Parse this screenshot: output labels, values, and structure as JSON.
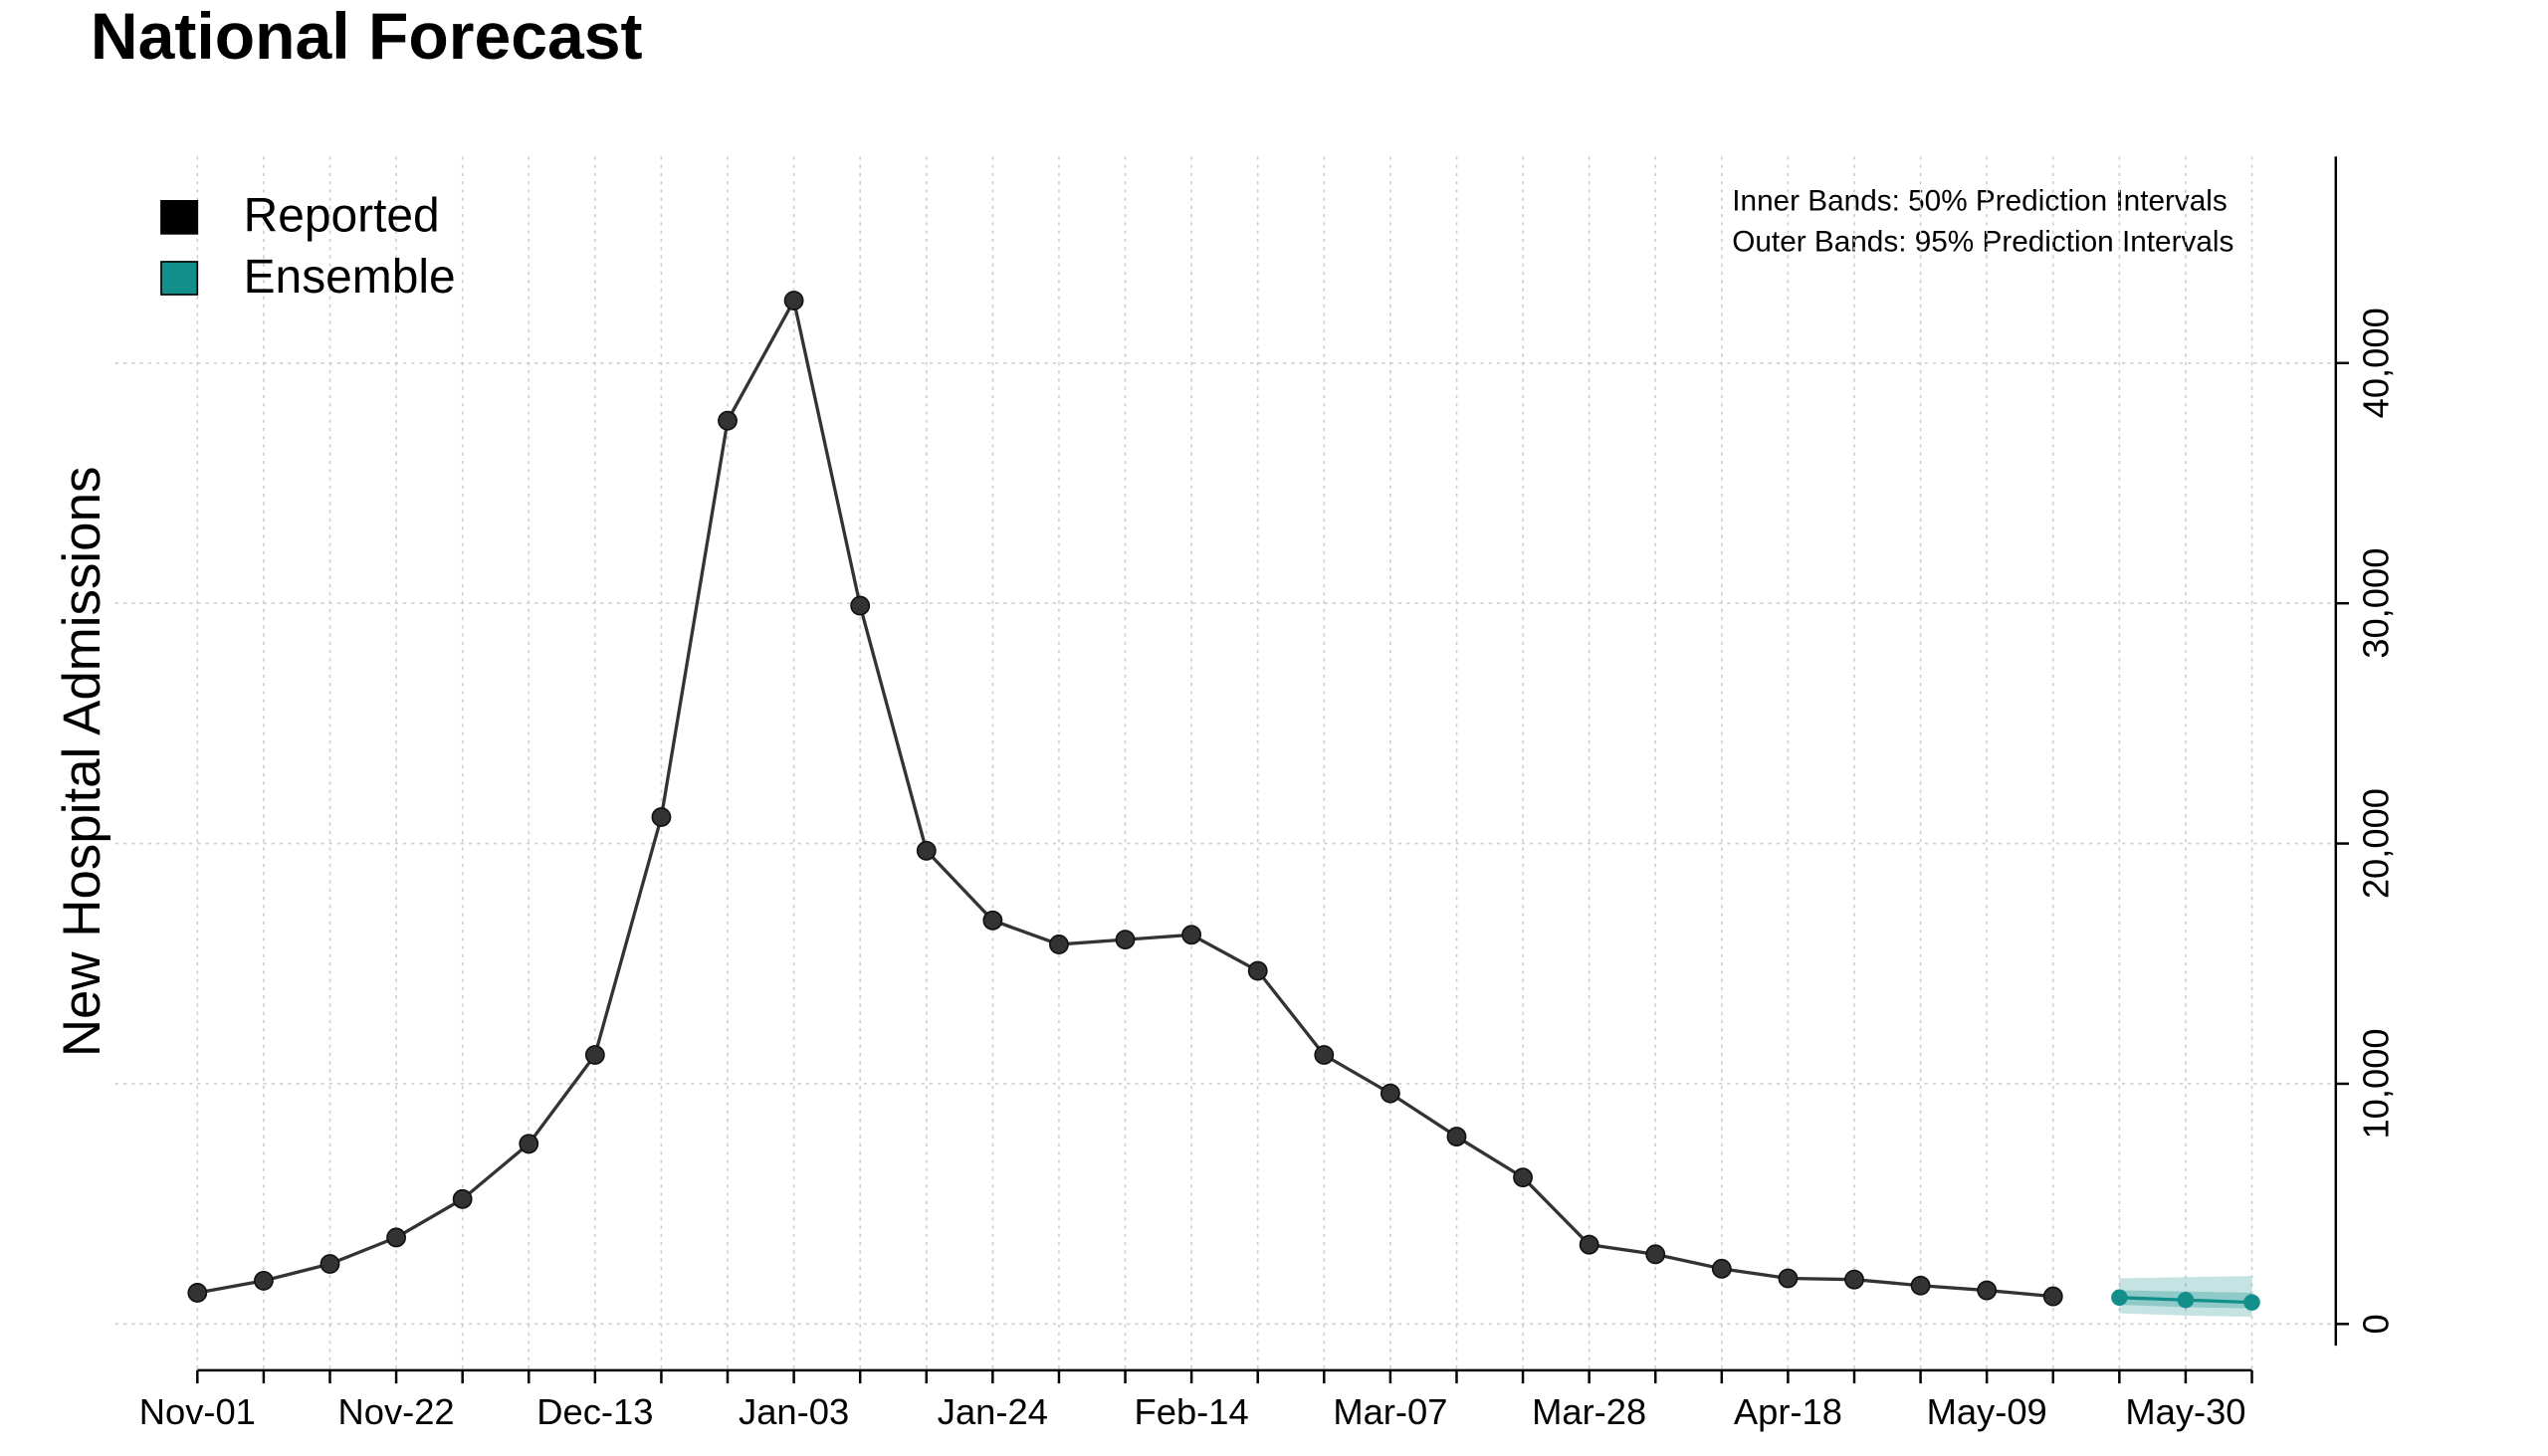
{
  "chart_data": {
    "type": "line",
    "title": "National Forecast",
    "y_label": "New Hospital Admissions",
    "annotations": [
      "Inner Bands: 50% Prediction Intervals",
      "Outer Bands: 95% Prediction Intervals"
    ],
    "categories": [
      "Nov-01",
      null,
      null,
      "Nov-22",
      null,
      null,
      "Dec-13",
      null,
      null,
      "Jan-03",
      null,
      null,
      "Jan-24",
      null,
      null,
      "Feb-14",
      null,
      null,
      "Mar-07",
      null,
      null,
      "Mar-28",
      null,
      null,
      "Apr-18",
      null,
      null,
      "May-09",
      null,
      null,
      "May-30",
      null
    ],
    "series": [
      {
        "name": "Reported",
        "color": "#000000",
        "values": [
          1300,
          1800,
          2500,
          3600,
          5200,
          7500,
          11200,
          21100,
          37600,
          42600,
          29900,
          19700,
          16800,
          15800,
          16000,
          16200,
          14700,
          11200,
          9600,
          7800,
          6100,
          3300,
          2900,
          2300,
          1900,
          1850,
          1600,
          1400,
          1150,
          null,
          null,
          null
        ]
      },
      {
        "name": "Ensemble",
        "color": "#138f8b",
        "values": [
          null,
          null,
          null,
          null,
          null,
          null,
          null,
          null,
          null,
          null,
          null,
          null,
          null,
          null,
          null,
          null,
          null,
          null,
          null,
          null,
          null,
          null,
          null,
          null,
          null,
          null,
          null,
          null,
          null,
          1100,
          1000,
          900
        ],
        "interval_50": {
          "lower": [
            null,
            null,
            null,
            null,
            null,
            null,
            null,
            null,
            null,
            null,
            null,
            null,
            null,
            null,
            null,
            null,
            null,
            null,
            null,
            null,
            null,
            null,
            null,
            null,
            null,
            null,
            null,
            null,
            null,
            800,
            700,
            650
          ],
          "upper": [
            null,
            null,
            null,
            null,
            null,
            null,
            null,
            null,
            null,
            null,
            null,
            null,
            null,
            null,
            null,
            null,
            null,
            null,
            null,
            null,
            null,
            null,
            null,
            null,
            null,
            null,
            null,
            null,
            null,
            1400,
            1350,
            1300
          ]
        },
        "interval_95": {
          "lower": [
            null,
            null,
            null,
            null,
            null,
            null,
            null,
            null,
            null,
            null,
            null,
            null,
            null,
            null,
            null,
            null,
            null,
            null,
            null,
            null,
            null,
            null,
            null,
            null,
            null,
            null,
            null,
            null,
            null,
            450,
            350,
            300
          ],
          "upper": [
            null,
            null,
            null,
            null,
            null,
            null,
            null,
            null,
            null,
            null,
            null,
            null,
            null,
            null,
            null,
            null,
            null,
            null,
            null,
            null,
            null,
            null,
            null,
            null,
            null,
            null,
            null,
            null,
            null,
            1900,
            1950,
            2000
          ]
        }
      }
    ],
    "ylim": [
      -900,
      48600
    ],
    "yticks": [
      0,
      {
        "value": 10000,
        "label": "10,000"
      },
      {
        "value": 20000,
        "label": "20,000"
      },
      {
        "value": 30000,
        "label": "30,000"
      },
      {
        "value": 40000,
        "label": "40,000"
      }
    ],
    "grid": true,
    "legend": "top-left"
  }
}
